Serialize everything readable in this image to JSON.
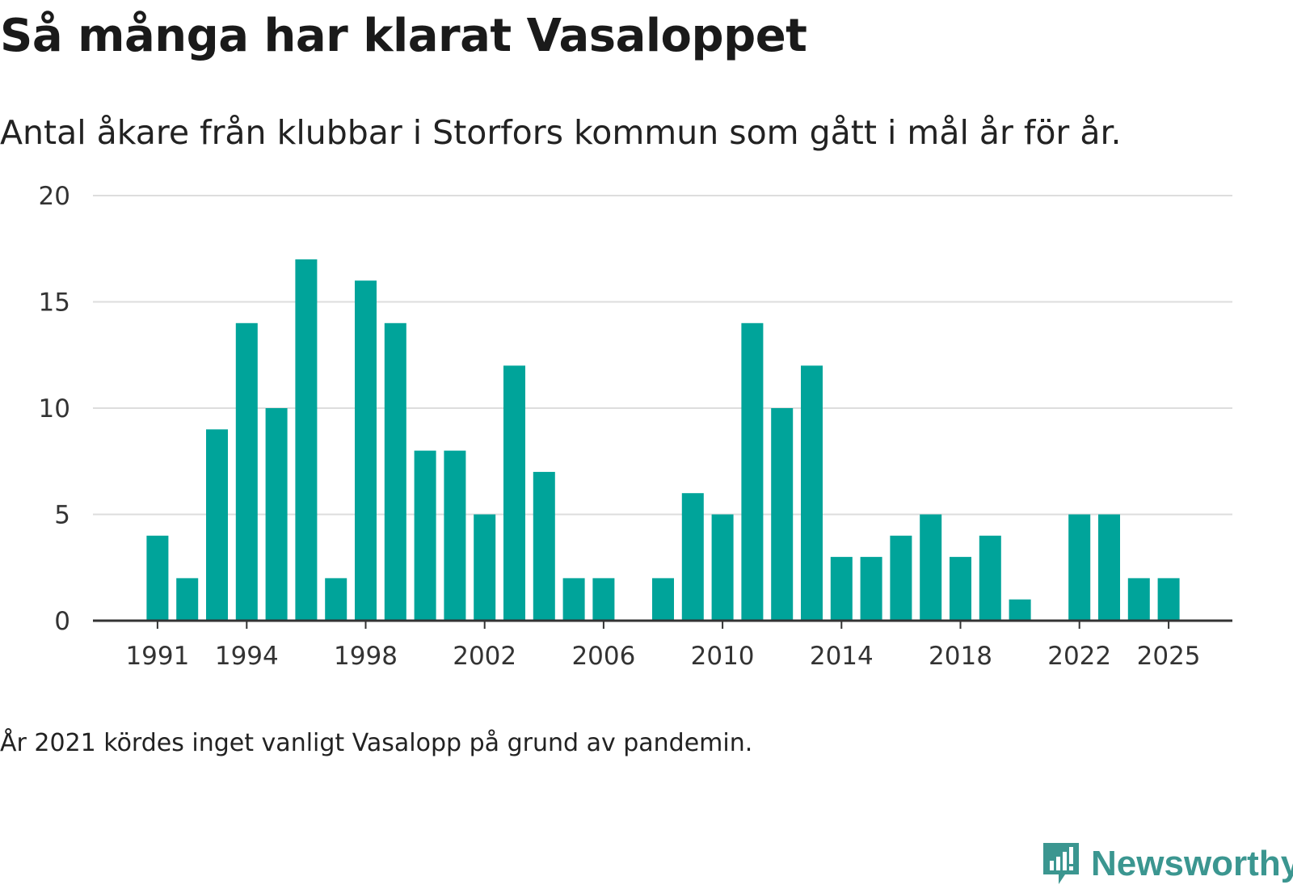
{
  "title": "Så många har klarat Vasaloppet",
  "subtitle": "Antal åkare från klubbar i Storfors kommun som gått i mål år för år.",
  "footnote": "År 2021 kördes inget vanligt Vasalopp på grund av pandemin.",
  "brand": {
    "name": "Newsworthy",
    "icon": "newsworthy-logo-icon"
  },
  "colors": {
    "bar": "#00a49a",
    "grid": "#dddddd",
    "axis": "#333333",
    "text": "#333333",
    "brand": "#3b9690"
  },
  "chart_data": {
    "type": "bar",
    "title": "Så många har klarat Vasaloppet",
    "xlabel": "",
    "ylabel": "",
    "ylim": [
      0,
      20
    ],
    "yticks": [
      0,
      5,
      10,
      15,
      20
    ],
    "xtick_labels": [
      "1991",
      "1994",
      "1998",
      "2002",
      "2006",
      "2010",
      "2014",
      "2018",
      "2022",
      "2025"
    ],
    "grid": true,
    "categories": [
      "1991",
      "1992",
      "1993",
      "1994",
      "1995",
      "1996",
      "1997",
      "1998",
      "1999",
      "2000",
      "2001",
      "2002",
      "2003",
      "2004",
      "2005",
      "2006",
      "2007",
      "2008",
      "2009",
      "2010",
      "2011",
      "2012",
      "2013",
      "2014",
      "2015",
      "2016",
      "2017",
      "2018",
      "2019",
      "2020",
      "2021",
      "2022",
      "2023",
      "2024",
      "2025"
    ],
    "values": [
      4,
      2,
      9,
      14,
      10,
      17,
      2,
      16,
      14,
      8,
      8,
      5,
      12,
      7,
      2,
      2,
      0,
      2,
      6,
      5,
      14,
      10,
      12,
      3,
      3,
      4,
      5,
      3,
      4,
      1,
      0,
      5,
      5,
      2,
      2
    ]
  }
}
